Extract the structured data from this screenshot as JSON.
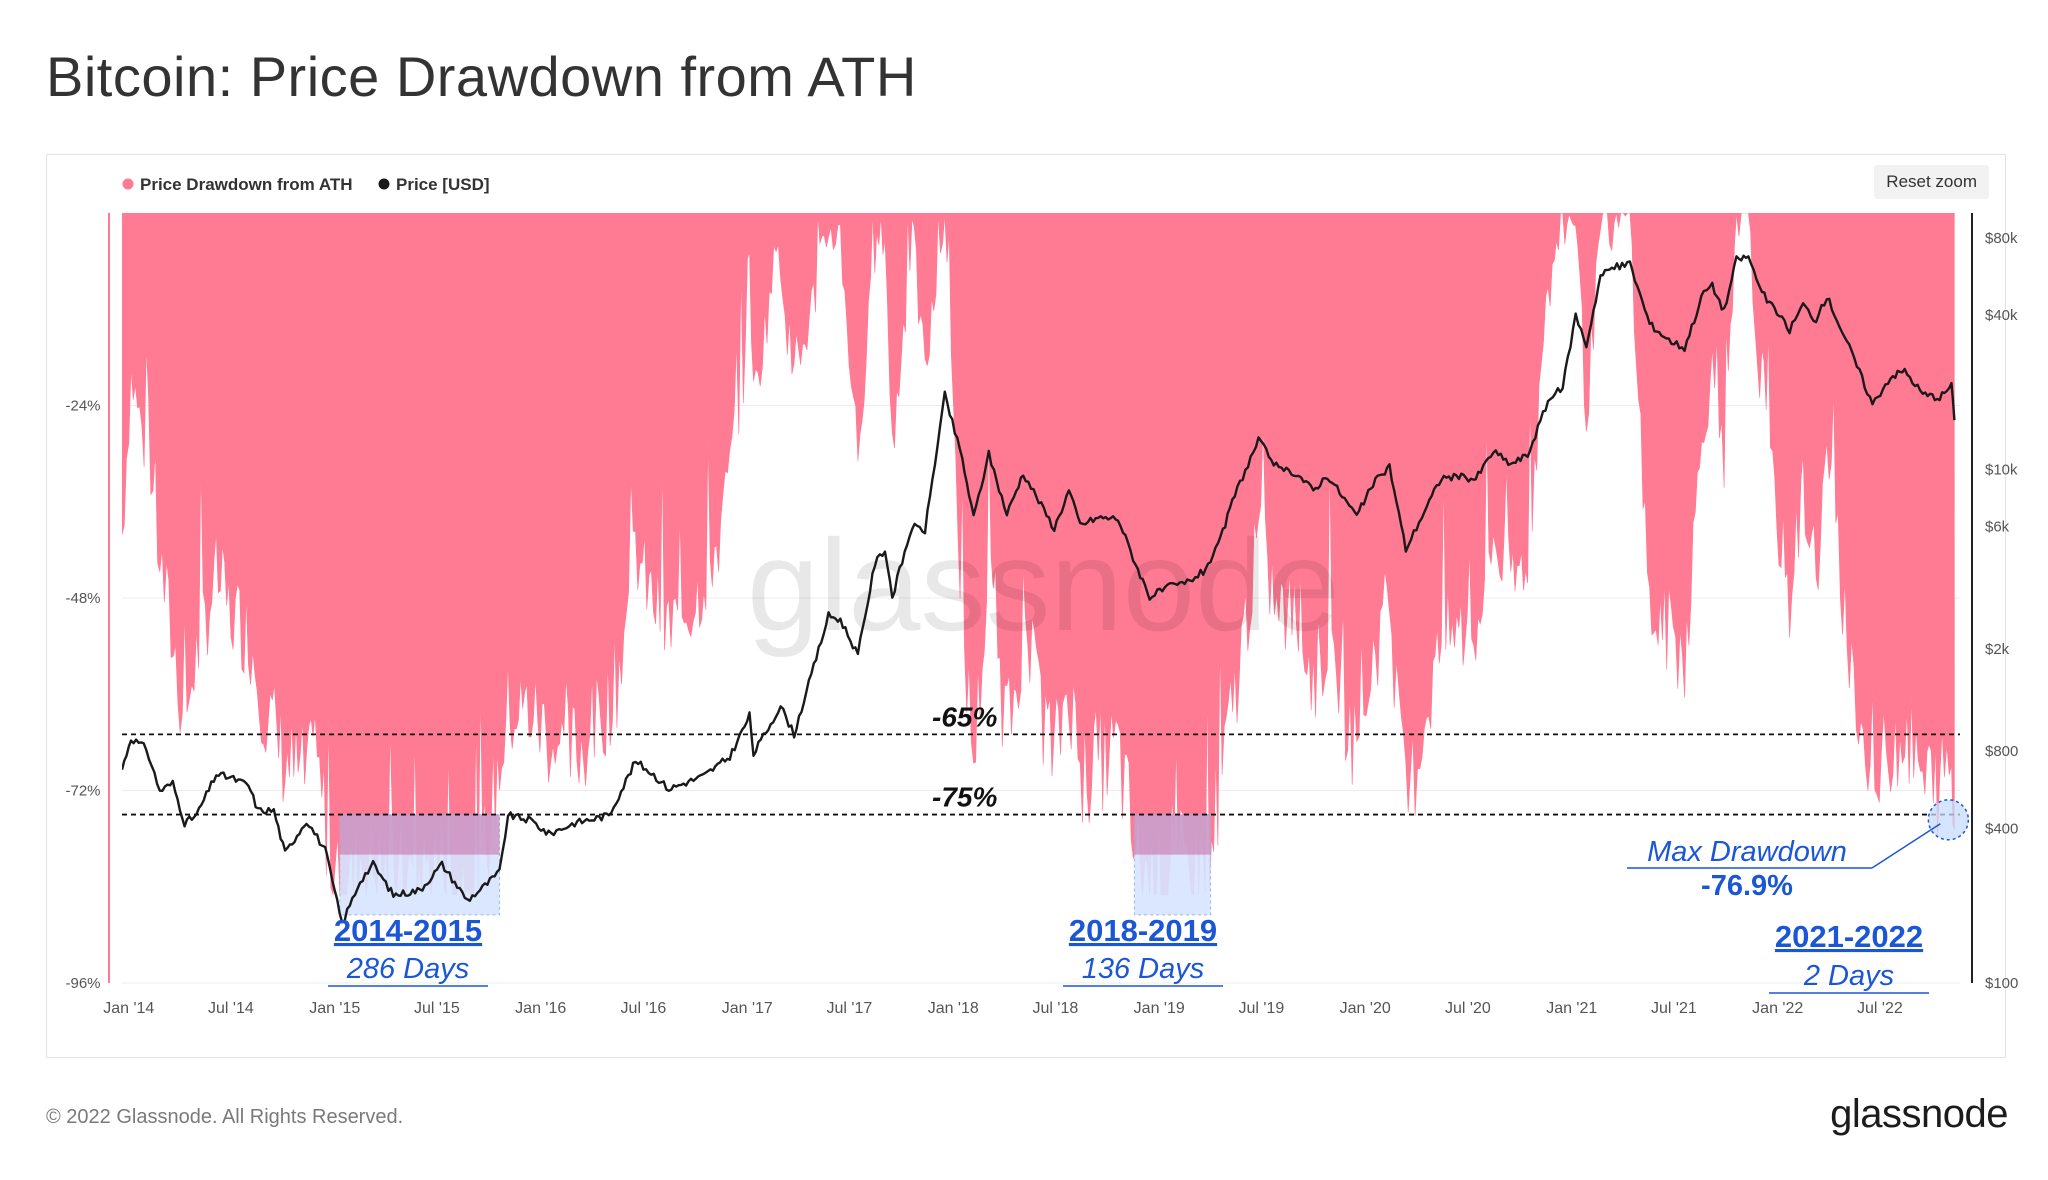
{
  "title": "Bitcoin: Price Drawdown from ATH",
  "reset_zoom_label": "Reset zoom",
  "footer": {
    "copyright": "© 2022 Glassnode. All Rights Reserved.",
    "logo_text": "glassnode"
  },
  "watermark": "glassnode",
  "colors": {
    "drawdown": "#ff7a93",
    "price": "#1a1a1a",
    "highlight_fill": "#d6e4ff",
    "highlight_accent": "#c56aa2",
    "annotation": "#1a56d6"
  },
  "chart_data": {
    "type": "area",
    "legend_position": "top-left",
    "legend": [
      {
        "name": "Price Drawdown from ATH",
        "color": "#ff7a93"
      },
      {
        "name": "Price [USD]",
        "color": "#1a1a1a"
      }
    ],
    "x_range": [
      "2013-12-20",
      "2022-11-20"
    ],
    "x_ticks": [
      "Jan '14",
      "Jul '14",
      "Jan '15",
      "Jul '15",
      "Jan '16",
      "Jul '16",
      "Jan '17",
      "Jul '17",
      "Jan '18",
      "Jul '18",
      "Jan '19",
      "Jul '19",
      "Jan '20",
      "Jul '20",
      "Jan '21",
      "Jul '21",
      "Jan '22",
      "Jul '22"
    ],
    "x_tick_dates": [
      "2014-01-01",
      "2014-07-01",
      "2015-01-01",
      "2015-07-01",
      "2016-01-01",
      "2016-07-01",
      "2017-01-01",
      "2017-07-01",
      "2018-01-01",
      "2018-07-01",
      "2019-01-01",
      "2019-07-01",
      "2020-01-01",
      "2020-07-01",
      "2021-01-01",
      "2021-07-01",
      "2022-01-01",
      "2022-07-01"
    ],
    "y_left": {
      "range": [
        -96,
        0
      ],
      "ticks": [
        -24,
        -48,
        -72,
        -96
      ],
      "tick_labels": [
        "-24%",
        "-48%",
        "-72%",
        "-96%"
      ]
    },
    "y_right": {
      "scale": "log",
      "range": [
        100,
        100000
      ],
      "ticks": [
        100,
        400,
        800,
        2000,
        6000,
        10000,
        40000,
        80000
      ],
      "tick_labels": [
        "$100",
        "$400",
        "$800",
        "$2k",
        "$6k",
        "$10k",
        "$40k",
        "$80k"
      ]
    },
    "reference_lines": [
      {
        "value": -65,
        "label": "-65%"
      },
      {
        "value": -75,
        "label": "-75%"
      }
    ],
    "highlight_periods": [
      {
        "label": "2014-2015",
        "sublabel": "286 Days",
        "start": "2015-01-10",
        "end": "2015-10-20"
      },
      {
        "label": "2018-2019",
        "sublabel": "136 Days",
        "start": "2018-11-18",
        "end": "2019-04-02"
      },
      {
        "label": "2021-2022",
        "sublabel": "2 Days",
        "start": "2022-11-09",
        "end": "2022-11-11"
      }
    ],
    "max_drawdown": {
      "label": "Max Drawdown",
      "value": "-76.9%",
      "date": "2022-11-10",
      "y": -76.9
    },
    "series": [
      {
        "name": "Price Drawdown from ATH",
        "unit": "%",
        "points": [
          [
            "2013-12-20",
            -40
          ],
          [
            "2014-01-05",
            -20
          ],
          [
            "2014-02-01",
            -30
          ],
          [
            "2014-03-01",
            -45
          ],
          [
            "2014-04-10",
            -63
          ],
          [
            "2014-05-01",
            -55
          ],
          [
            "2014-06-05",
            -45
          ],
          [
            "2014-07-01",
            -50
          ],
          [
            "2014-08-01",
            -52
          ],
          [
            "2014-09-01",
            -62
          ],
          [
            "2014-10-05",
            -68
          ],
          [
            "2014-11-01",
            -70
          ],
          [
            "2014-12-01",
            -70
          ],
          [
            "2015-01-14",
            -86
          ],
          [
            "2015-02-15",
            -80
          ],
          [
            "2015-04-01",
            -82
          ],
          [
            "2015-05-15",
            -83
          ],
          [
            "2015-07-10",
            -80
          ],
          [
            "2015-08-24",
            -84
          ],
          [
            "2015-09-20",
            -81
          ],
          [
            "2015-11-04",
            -62
          ],
          [
            "2015-12-15",
            -62
          ],
          [
            "2016-02-15",
            -68
          ],
          [
            "2016-04-01",
            -65
          ],
          [
            "2016-05-15",
            -58
          ],
          [
            "2016-06-17",
            -42
          ],
          [
            "2016-07-15",
            -48
          ],
          [
            "2016-08-15",
            -52
          ],
          [
            "2016-10-01",
            -48
          ],
          [
            "2016-11-15",
            -40
          ],
          [
            "2016-12-25",
            -20
          ],
          [
            "2017-01-05",
            -3
          ],
          [
            "2017-01-12",
            -24
          ],
          [
            "2017-02-25",
            -3
          ],
          [
            "2017-03-25",
            -22
          ],
          [
            "2017-05-25",
            -2
          ],
          [
            "2017-06-15",
            -3
          ],
          [
            "2017-07-16",
            -30
          ],
          [
            "2017-08-15",
            -5
          ],
          [
            "2017-09-02",
            -2
          ],
          [
            "2017-09-15",
            -30
          ],
          [
            "2017-10-20",
            -2
          ],
          [
            "2017-11-12",
            -20
          ],
          [
            "2017-12-17",
            0
          ],
          [
            "2018-01-17",
            -50
          ],
          [
            "2018-02-06",
            -68
          ],
          [
            "2018-03-05",
            -45
          ],
          [
            "2018-04-06",
            -65
          ],
          [
            "2018-05-05",
            -52
          ],
          [
            "2018-06-29",
            -68
          ],
          [
            "2018-07-25",
            -58
          ],
          [
            "2018-08-14",
            -70
          ],
          [
            "2018-09-15",
            -68
          ],
          [
            "2018-10-20",
            -67
          ],
          [
            "2018-11-20",
            -80
          ],
          [
            "2018-12-15",
            -83
          ],
          [
            "2019-01-20",
            -82
          ],
          [
            "2019-02-15",
            -82
          ],
          [
            "2019-03-20",
            -80
          ],
          [
            "2019-04-15",
            -73
          ],
          [
            "2019-05-15",
            -60
          ],
          [
            "2019-06-26",
            -40
          ],
          [
            "2019-08-01",
            -50
          ],
          [
            "2019-09-01",
            -50
          ],
          [
            "2019-10-01",
            -58
          ],
          [
            "2019-10-26",
            -53
          ],
          [
            "2019-12-17",
            -67
          ],
          [
            "2020-01-15",
            -55
          ],
          [
            "2020-02-13",
            -48
          ],
          [
            "2020-03-13",
            -75
          ],
          [
            "2020-04-15",
            -63
          ],
          [
            "2020-05-15",
            -53
          ],
          [
            "2020-06-15",
            -52
          ],
          [
            "2020-07-15",
            -53
          ],
          [
            "2020-08-15",
            -40
          ],
          [
            "2020-09-15",
            -47
          ],
          [
            "2020-10-15",
            -42
          ],
          [
            "2020-11-20",
            -10
          ],
          [
            "2020-12-16",
            -2
          ],
          [
            "2021-01-08",
            0
          ],
          [
            "2021-01-27",
            -25
          ],
          [
            "2021-02-21",
            -2
          ],
          [
            "2021-03-13",
            -2
          ],
          [
            "2021-04-14",
            0
          ],
          [
            "2021-05-19",
            -50
          ],
          [
            "2021-06-22",
            -52
          ],
          [
            "2021-07-20",
            -55
          ],
          [
            "2021-08-23",
            -25
          ],
          [
            "2021-09-07",
            -20
          ],
          [
            "2021-09-28",
            -32
          ],
          [
            "2021-10-20",
            -2
          ],
          [
            "2021-11-10",
            0
          ],
          [
            "2021-12-04",
            -25
          ],
          [
            "2022-01-22",
            -48
          ],
          [
            "2022-02-15",
            -34
          ],
          [
            "2022-03-10",
            -45
          ],
          [
            "2022-03-29",
            -30
          ],
          [
            "2022-05-12",
            -57
          ],
          [
            "2022-06-18",
            -73
          ],
          [
            "2022-07-20",
            -66
          ],
          [
            "2022-08-14",
            -64
          ],
          [
            "2022-09-15",
            -71
          ],
          [
            "2022-10-15",
            -71
          ],
          [
            "2022-11-05",
            -69
          ],
          [
            "2022-11-10",
            -76.9
          ]
        ]
      },
      {
        "name": "Price [USD]",
        "unit": "USD",
        "points": [
          [
            "2013-12-20",
            680
          ],
          [
            "2014-01-05",
            900
          ],
          [
            "2014-02-01",
            820
          ],
          [
            "2014-02-25",
            560
          ],
          [
            "2014-03-20",
            600
          ],
          [
            "2014-04-10",
            420
          ],
          [
            "2014-05-01",
            450
          ],
          [
            "2014-06-05",
            650
          ],
          [
            "2014-07-01",
            630
          ],
          [
            "2014-08-01",
            590
          ],
          [
            "2014-08-18",
            470
          ],
          [
            "2014-09-15",
            470
          ],
          [
            "2014-10-05",
            320
          ],
          [
            "2014-11-12",
            430
          ],
          [
            "2014-12-15",
            330
          ],
          [
            "2015-01-14",
            170
          ],
          [
            "2015-02-15",
            250
          ],
          [
            "2015-03-10",
            290
          ],
          [
            "2015-04-15",
            220
          ],
          [
            "2015-06-01",
            230
          ],
          [
            "2015-07-10",
            290
          ],
          [
            "2015-08-24",
            210
          ],
          [
            "2015-09-20",
            235
          ],
          [
            "2015-10-20",
            270
          ],
          [
            "2015-11-04",
            450
          ],
          [
            "2015-12-15",
            430
          ],
          [
            "2016-01-15",
            380
          ],
          [
            "2016-03-01",
            420
          ],
          [
            "2016-05-01",
            450
          ],
          [
            "2016-06-17",
            730
          ],
          [
            "2016-07-15",
            660
          ],
          [
            "2016-08-15",
            570
          ],
          [
            "2016-10-15",
            640
          ],
          [
            "2016-12-01",
            760
          ],
          [
            "2017-01-05",
            1100
          ],
          [
            "2017-01-12",
            780
          ],
          [
            "2017-03-01",
            1200
          ],
          [
            "2017-03-25",
            930
          ],
          [
            "2017-05-25",
            2700
          ],
          [
            "2017-06-15",
            2600
          ],
          [
            "2017-07-16",
            1900
          ],
          [
            "2017-08-15",
            4300
          ],
          [
            "2017-09-02",
            4900
          ],
          [
            "2017-09-15",
            3200
          ],
          [
            "2017-10-20",
            6000
          ],
          [
            "2017-11-12",
            5800
          ],
          [
            "2017-12-17",
            19500
          ],
          [
            "2018-01-17",
            11000
          ],
          [
            "2018-02-06",
            6500
          ],
          [
            "2018-03-05",
            11500
          ],
          [
            "2018-04-06",
            6700
          ],
          [
            "2018-05-05",
            9700
          ],
          [
            "2018-06-29",
            5900
          ],
          [
            "2018-07-25",
            8300
          ],
          [
            "2018-08-14",
            6100
          ],
          [
            "2018-09-15",
            6500
          ],
          [
            "2018-10-20",
            6450
          ],
          [
            "2018-11-20",
            4300
          ],
          [
            "2018-12-15",
            3200
          ],
          [
            "2019-01-20",
            3500
          ],
          [
            "2019-02-15",
            3600
          ],
          [
            "2019-03-20",
            4000
          ],
          [
            "2019-04-15",
            5000
          ],
          [
            "2019-05-15",
            8000
          ],
          [
            "2019-06-26",
            13000
          ],
          [
            "2019-08-01",
            10000
          ],
          [
            "2019-09-01",
            9700
          ],
          [
            "2019-10-01",
            8300
          ],
          [
            "2019-10-26",
            9500
          ],
          [
            "2019-12-17",
            6600
          ],
          [
            "2020-01-15",
            8800
          ],
          [
            "2020-02-13",
            10300
          ],
          [
            "2020-03-13",
            4900
          ],
          [
            "2020-04-15",
            6900
          ],
          [
            "2020-05-15",
            9300
          ],
          [
            "2020-06-15",
            9400
          ],
          [
            "2020-07-15",
            9200
          ],
          [
            "2020-08-15",
            11800
          ],
          [
            "2020-09-15",
            10500
          ],
          [
            "2020-10-15",
            11400
          ],
          [
            "2020-11-20",
            18500
          ],
          [
            "2020-12-16",
            21000
          ],
          [
            "2021-01-08",
            40000
          ],
          [
            "2021-01-27",
            30500
          ],
          [
            "2021-02-21",
            57000
          ],
          [
            "2021-03-13",
            61000
          ],
          [
            "2021-04-14",
            63500
          ],
          [
            "2021-05-19",
            37000
          ],
          [
            "2021-06-22",
            32000
          ],
          [
            "2021-07-20",
            29800
          ],
          [
            "2021-08-23",
            49500
          ],
          [
            "2021-09-07",
            52000
          ],
          [
            "2021-09-28",
            41500
          ],
          [
            "2021-10-20",
            66000
          ],
          [
            "2021-11-10",
            67500
          ],
          [
            "2021-12-04",
            49000
          ],
          [
            "2022-01-22",
            35000
          ],
          [
            "2022-02-15",
            44000
          ],
          [
            "2022-03-10",
            38000
          ],
          [
            "2022-03-29",
            47500
          ],
          [
            "2022-05-12",
            28500
          ],
          [
            "2022-06-18",
            18000
          ],
          [
            "2022-07-20",
            23000
          ],
          [
            "2022-08-14",
            24300
          ],
          [
            "2022-09-15",
            19700
          ],
          [
            "2022-10-15",
            19100
          ],
          [
            "2022-11-05",
            21300
          ],
          [
            "2022-11-10",
            15600
          ]
        ]
      }
    ]
  }
}
